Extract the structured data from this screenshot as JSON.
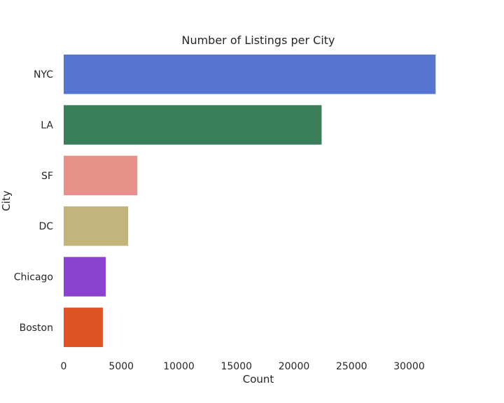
{
  "chart_data": {
    "type": "bar",
    "orientation": "horizontal",
    "title": "Number of Listings per City",
    "xlabel": "Count",
    "ylabel": "City",
    "categories": [
      "NYC",
      "LA",
      "SF",
      "DC",
      "Chicago",
      "Boston"
    ],
    "values": [
      32300,
      22400,
      6400,
      5600,
      3650,
      3400
    ],
    "colors": [
      "#5575d0",
      "#3b7f5a",
      "#e8908a",
      "#c3b47e",
      "#8c42d0",
      "#e05326"
    ],
    "xlim": [
      0,
      33800
    ],
    "xticks": [
      0,
      5000,
      10000,
      15000,
      20000,
      25000,
      30000
    ],
    "xtick_labels": [
      "0",
      "5000",
      "10000",
      "15000",
      "20000",
      "25000",
      "30000"
    ],
    "grid": false,
    "legend": null
  }
}
